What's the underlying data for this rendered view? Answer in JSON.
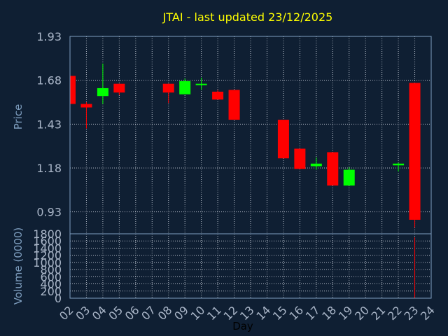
{
  "title": "JTAI - last updated 23/12/2025",
  "colors": {
    "background": "#0f1f33",
    "panel_border": "#7f9fc0",
    "grid": "#b0b8c4",
    "up": "#00ff00",
    "down": "#ff0000",
    "title": "#ffff00",
    "tick": "#aab6c8",
    "axis_label": "#7f9fc0"
  },
  "chart_data": [
    {
      "type": "candlestick",
      "ylabel": "Price",
      "ylim": [
        0.805,
        1.93
      ],
      "y_ticks": [
        "1.93",
        "1.68",
        "1.43",
        "1.18",
        "0.93"
      ],
      "y_tick_values": [
        1.93,
        1.68,
        1.43,
        1.18,
        0.93
      ],
      "x_categories": [
        "02",
        "03",
        "04",
        "05",
        "06",
        "07",
        "08",
        "09",
        "10",
        "11",
        "12",
        "13",
        "14",
        "15",
        "16",
        "17",
        "18",
        "19",
        "20",
        "21",
        "22",
        "23",
        "24"
      ],
      "grid": true,
      "candles": [
        {
          "day": "02",
          "open": 1.705,
          "high": 1.705,
          "low": 1.545,
          "close": 1.545
        },
        {
          "day": "03",
          "open": 1.545,
          "high": 1.555,
          "low": 1.405,
          "close": 1.525
        },
        {
          "day": "04",
          "open": 1.59,
          "high": 1.775,
          "low": 1.545,
          "close": 1.635
        },
        {
          "day": "05",
          "open": 1.66,
          "high": 1.66,
          "low": 1.595,
          "close": 1.61
        },
        {
          "day": "08",
          "open": 1.66,
          "high": 1.66,
          "low": 1.55,
          "close": 1.61
        },
        {
          "day": "09",
          "open": 1.6,
          "high": 1.69,
          "low": 1.6,
          "close": 1.675
        },
        {
          "day": "10",
          "open": 1.655,
          "high": 1.695,
          "low": 1.625,
          "close": 1.66
        },
        {
          "day": "11",
          "open": 1.615,
          "high": 1.625,
          "low": 1.57,
          "close": 1.57
        },
        {
          "day": "12",
          "open": 1.625,
          "high": 1.625,
          "low": 1.455,
          "close": 1.455
        },
        {
          "day": "15",
          "open": 1.455,
          "high": 1.455,
          "low": 1.235,
          "close": 1.235
        },
        {
          "day": "16",
          "open": 1.29,
          "high": 1.29,
          "low": 1.175,
          "close": 1.175
        },
        {
          "day": "17",
          "open": 1.19,
          "high": 1.24,
          "low": 1.17,
          "close": 1.205
        },
        {
          "day": "18",
          "open": 1.27,
          "high": 1.27,
          "low": 1.08,
          "close": 1.08
        },
        {
          "day": "19",
          "open": 1.08,
          "high": 1.185,
          "low": 1.08,
          "close": 1.17
        },
        {
          "day": "22",
          "open": 1.195,
          "high": 1.21,
          "low": 1.16,
          "close": 1.205
        },
        {
          "day": "23",
          "open": 1.665,
          "high": 1.665,
          "low": 0.84,
          "close": 0.885
        }
      ]
    },
    {
      "type": "bar",
      "ylabel": "Volume (0000)",
      "xlabel": "Day",
      "ylim": [
        0,
        1800
      ],
      "y_ticks": [
        "1800",
        "1600",
        "1400",
        "1200",
        "1000",
        "800",
        "600",
        "400",
        "200",
        "0"
      ],
      "y_tick_values": [
        1800,
        1600,
        1400,
        1200,
        1000,
        800,
        600,
        400,
        200,
        0
      ],
      "x_categories": [
        "02",
        "03",
        "04",
        "05",
        "06",
        "07",
        "08",
        "09",
        "10",
        "11",
        "12",
        "13",
        "14",
        "15",
        "16",
        "17",
        "18",
        "19",
        "20",
        "21",
        "22",
        "23",
        "24"
      ],
      "grid": true,
      "bars": [
        {
          "day": "23",
          "value": 1700,
          "direction": "down"
        }
      ]
    }
  ]
}
